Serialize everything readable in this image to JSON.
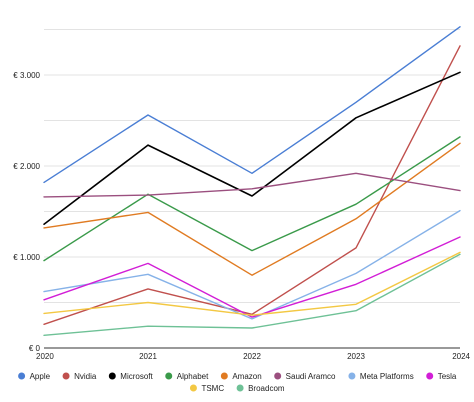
{
  "chart_data": {
    "type": "line",
    "categories": [
      "2020",
      "2021",
      "2022",
      "2023",
      "2024"
    ],
    "y_ticks": [
      0,
      1000,
      2000,
      3000
    ],
    "y_tick_labels": [
      "€ 0",
      "€ 1.000",
      "€ 2.000",
      "€ 3.000"
    ],
    "ylim": [
      0,
      3600
    ],
    "grid": true,
    "legend_position": "bottom",
    "series": [
      {
        "name": "Apple",
        "color": "#4a7ed4",
        "values": [
          1820,
          2560,
          1920,
          2700,
          3530
        ]
      },
      {
        "name": "Nvidia",
        "color": "#c0504d",
        "values": [
          260,
          650,
          370,
          1100,
          3320
        ]
      },
      {
        "name": "Microsoft",
        "color": "#000000",
        "values": [
          1360,
          2230,
          1670,
          2530,
          3030
        ]
      },
      {
        "name": "Alphabet",
        "color": "#3a9a4a",
        "values": [
          960,
          1690,
          1070,
          1580,
          2320
        ]
      },
      {
        "name": "Amazon",
        "color": "#e07b22",
        "values": [
          1320,
          1490,
          800,
          1420,
          2250
        ]
      },
      {
        "name": "Saudi Aramco",
        "color": "#9b4f7f",
        "values": [
          1660,
          1680,
          1750,
          1920,
          1730
        ]
      },
      {
        "name": "Meta Platforms",
        "color": "#86b2e8",
        "values": [
          620,
          810,
          320,
          820,
          1510
        ]
      },
      {
        "name": "Tesla",
        "color": "#d21ed6",
        "values": [
          530,
          930,
          340,
          700,
          1220
        ]
      },
      {
        "name": "TSMC",
        "color": "#f3c843",
        "values": [
          380,
          500,
          360,
          480,
          1050
        ]
      },
      {
        "name": "Broadcom",
        "color": "#6ec196",
        "values": [
          140,
          240,
          220,
          410,
          1030
        ]
      }
    ]
  }
}
